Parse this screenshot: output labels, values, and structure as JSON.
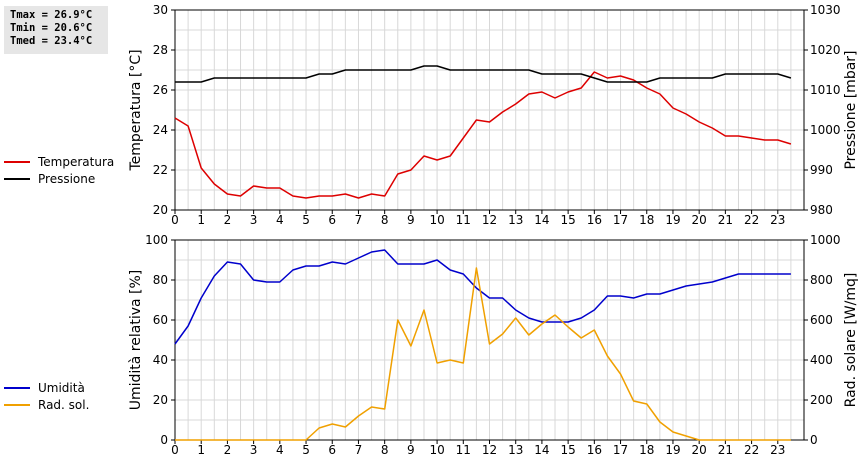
{
  "stats": {
    "tmax": "Tmax = 26.9°C",
    "tmin": "Tmin = 20.6°C",
    "tmed": "Tmed = 23.4°C"
  },
  "chart_data": [
    {
      "type": "line",
      "x": [
        0,
        0.5,
        1,
        1.5,
        2,
        2.5,
        3,
        3.5,
        4,
        4.5,
        5,
        5.5,
        6,
        6.5,
        7,
        7.5,
        8,
        8.5,
        9,
        9.5,
        10,
        10.5,
        11,
        11.5,
        12,
        12.5,
        13,
        13.5,
        14,
        14.5,
        15,
        15.5,
        16,
        16.5,
        17,
        17.5,
        18,
        18.5,
        19,
        19.5,
        20,
        20.5,
        21,
        21.5,
        22,
        22.5,
        23,
        23.5
      ],
      "xlim": [
        0,
        24
      ],
      "xticks": [
        "0",
        "1",
        "2",
        "3",
        "4",
        "5",
        "6",
        "7",
        "8",
        "9",
        "10",
        "11",
        "12",
        "13",
        "14",
        "15",
        "16",
        "17",
        "18",
        "19",
        "20",
        "21",
        "22",
        "23"
      ],
      "ylabel": "Temperatura [°C]",
      "ylim": [
        20,
        30
      ],
      "yticks": [
        "20",
        "22",
        "24",
        "26",
        "28",
        "30"
      ],
      "y2label": "Pressione [mbar]",
      "y2lim": [
        980,
        1030
      ],
      "y2ticks": [
        "980",
        "990",
        "1000",
        "1010",
        "1020",
        "1030"
      ],
      "grid": true,
      "legend": [
        "Temperatura",
        "Pressione"
      ],
      "series": [
        {
          "name": "Temperatura",
          "axis": "left",
          "color": "#dd0000",
          "values": [
            24.6,
            24.2,
            22.1,
            21.3,
            20.8,
            20.7,
            21.2,
            21.1,
            21.1,
            20.7,
            20.6,
            20.7,
            20.7,
            20.8,
            20.6,
            20.8,
            20.7,
            21.8,
            22.0,
            22.7,
            22.5,
            22.7,
            23.6,
            24.5,
            24.4,
            24.9,
            25.3,
            25.8,
            25.9,
            25.6,
            25.9,
            26.1,
            26.9,
            26.6,
            26.7,
            26.5,
            26.1,
            25.8,
            25.1,
            24.8,
            24.4,
            24.1,
            23.7,
            23.7,
            23.6,
            23.5,
            23.5,
            23.3
          ]
        },
        {
          "name": "Pressione",
          "axis": "right",
          "color": "#000000",
          "values": [
            1012,
            1012,
            1012,
            1013,
            1013,
            1013,
            1013,
            1013,
            1013,
            1013,
            1013,
            1014,
            1014,
            1015,
            1015,
            1015,
            1015,
            1015,
            1015,
            1016,
            1016,
            1015,
            1015,
            1015,
            1015,
            1015,
            1015,
            1015,
            1014,
            1014,
            1014,
            1014,
            1013,
            1012,
            1012,
            1012,
            1012,
            1013,
            1013,
            1013,
            1013,
            1013,
            1014,
            1014,
            1014,
            1014,
            1014,
            1013
          ]
        }
      ]
    },
    {
      "type": "line",
      "x": [
        0,
        0.5,
        1,
        1.5,
        2,
        2.5,
        3,
        3.5,
        4,
        4.5,
        5,
        5.5,
        6,
        6.5,
        7,
        7.5,
        8,
        8.5,
        9,
        9.5,
        10,
        10.5,
        11,
        11.5,
        12,
        12.5,
        13,
        13.5,
        14,
        14.5,
        15,
        15.5,
        16,
        16.5,
        17,
        17.5,
        18,
        18.5,
        19,
        19.5,
        20,
        20.5,
        21,
        21.5,
        22,
        22.5,
        23,
        23.5
      ],
      "xlim": [
        0,
        24
      ],
      "xticks": [
        "0",
        "1",
        "2",
        "3",
        "4",
        "5",
        "6",
        "7",
        "8",
        "9",
        "10",
        "11",
        "12",
        "13",
        "14",
        "15",
        "16",
        "17",
        "18",
        "19",
        "20",
        "21",
        "22",
        "23"
      ],
      "ylabel": "Umidità relativa [%]",
      "ylim": [
        0,
        100
      ],
      "yticks": [
        "0",
        "20",
        "40",
        "60",
        "80",
        "100"
      ],
      "y2label": "Rad. solare [W/mq]",
      "y2lim": [
        0,
        1000
      ],
      "y2ticks": [
        "0",
        "200",
        "400",
        "600",
        "800",
        "1000"
      ],
      "grid": true,
      "legend": [
        "Umidità",
        "Rad. sol."
      ],
      "series": [
        {
          "name": "Umidità",
          "axis": "left",
          "color": "#0000cc",
          "values": [
            48,
            57,
            71,
            82,
            89,
            88,
            80,
            79,
            79,
            85,
            87,
            87,
            89,
            88,
            91,
            94,
            95,
            88,
            88,
            88,
            90,
            85,
            83,
            76,
            71,
            71,
            65,
            61,
            59,
            59,
            59,
            61,
            65,
            72,
            72,
            71,
            73,
            73,
            75,
            77,
            78,
            79,
            81,
            83,
            83,
            83,
            83,
            83
          ]
        },
        {
          "name": "Rad. sol.",
          "axis": "right",
          "color": "#f0a000",
          "values": [
            0,
            0,
            0,
            0,
            0,
            0,
            0,
            0,
            0,
            0,
            0,
            60,
            80,
            65,
            120,
            165,
            155,
            600,
            470,
            650,
            385,
            400,
            385,
            860,
            480,
            530,
            610,
            525,
            580,
            625,
            565,
            510,
            550,
            420,
            330,
            195,
            180,
            90,
            40,
            20,
            0,
            0,
            0,
            0,
            0,
            0,
            0,
            0
          ]
        }
      ]
    }
  ]
}
